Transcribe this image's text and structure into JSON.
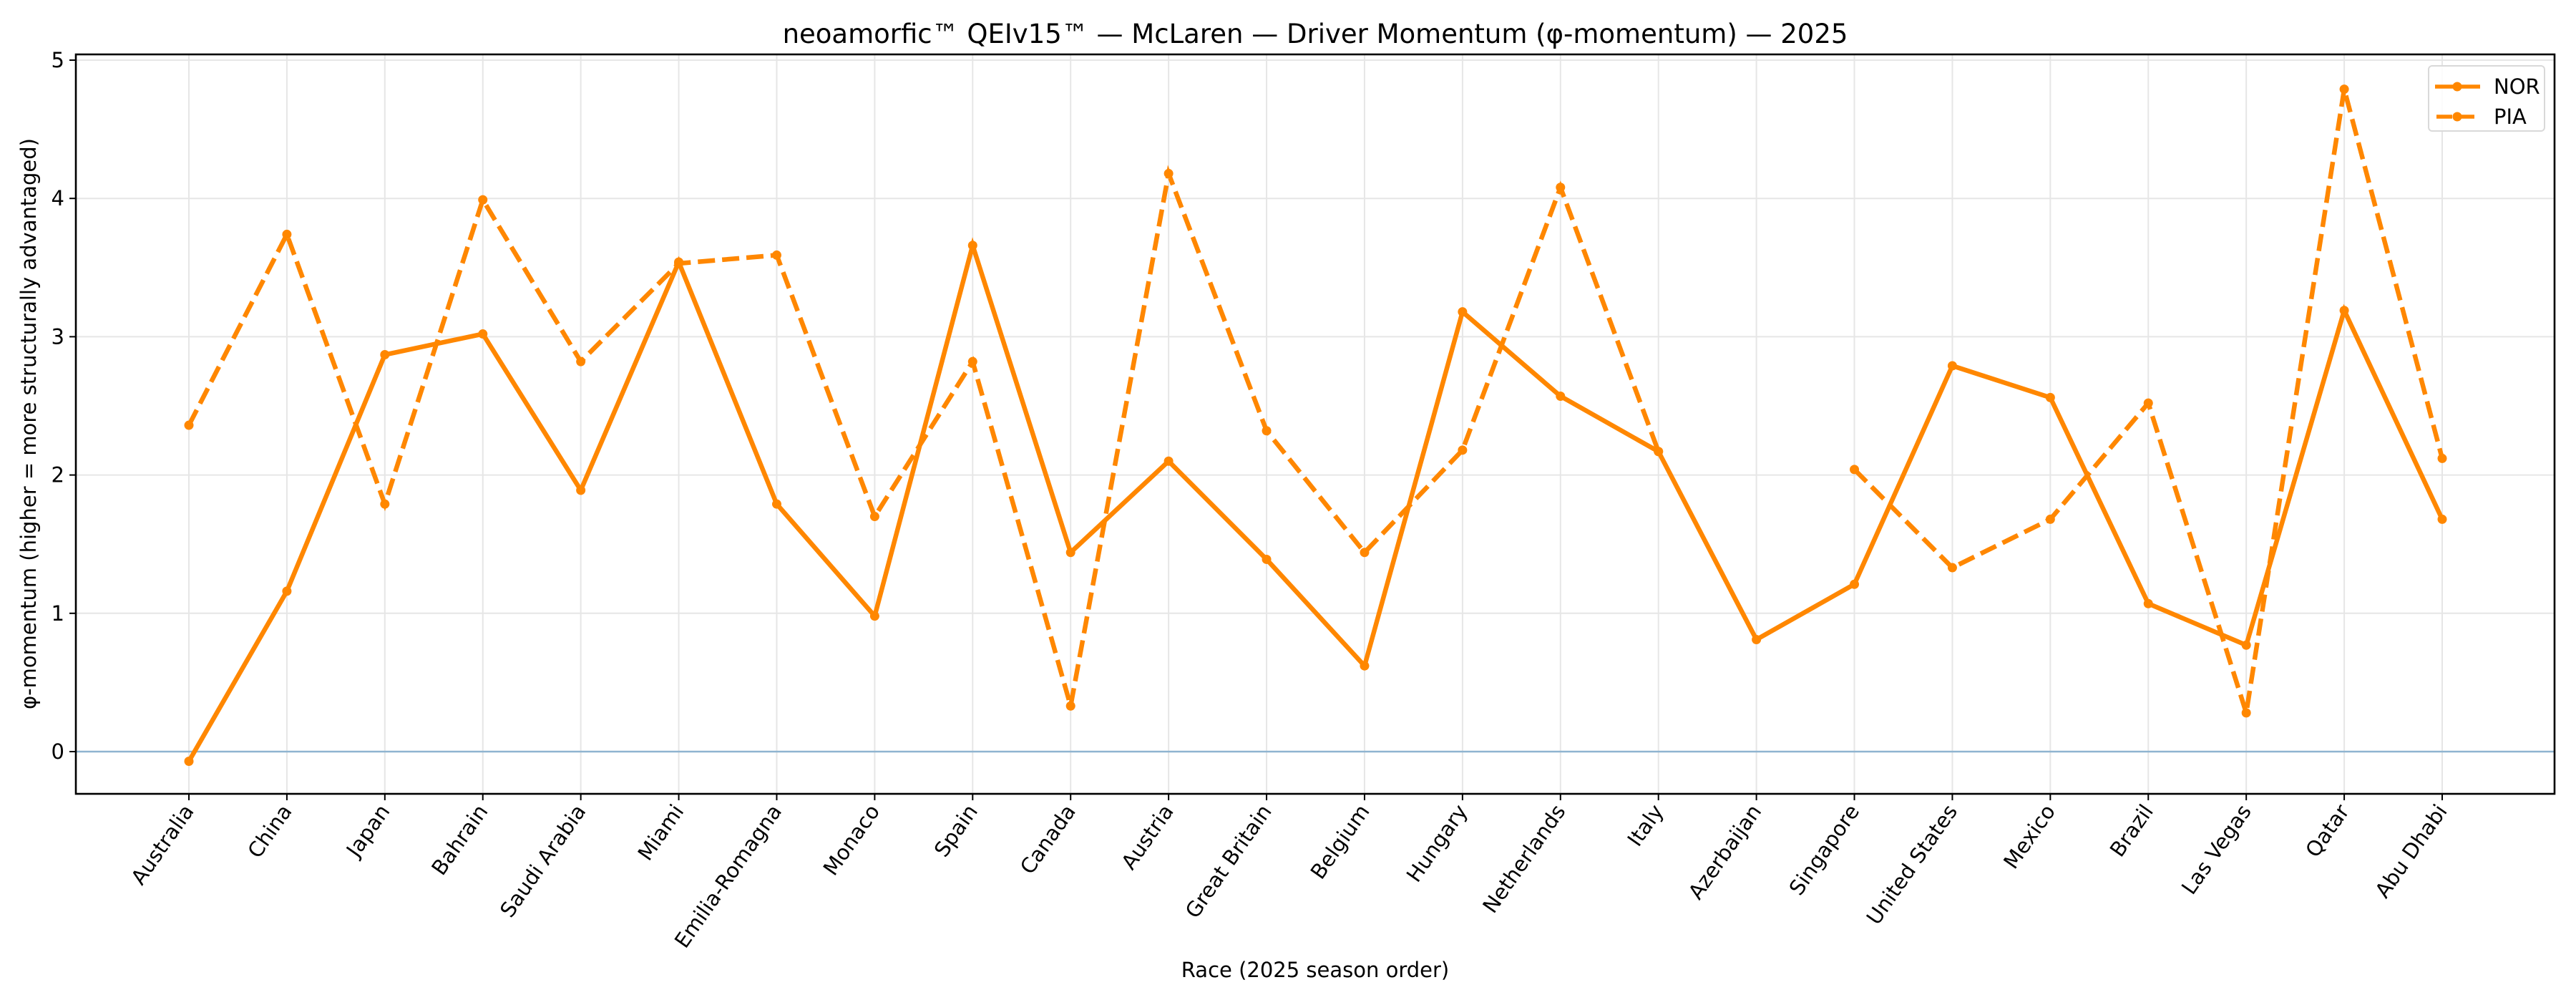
{
  "chart_data": {
    "type": "line",
    "title": "neoamorfic™  QEIv15™ — McLaren — Driver Momentum (φ-momentum) — 2025",
    "xlabel": "Race (2025 season order)",
    "ylabel": "φ-momentum (higher = more structurally advantaged)",
    "ylim": [
      -0.37,
      5.04
    ],
    "yticks": [
      0,
      1,
      2,
      3,
      4,
      5
    ],
    "grid": true,
    "reference_line": {
      "y": 0,
      "color": "#8fb4d0"
    },
    "legend_position": "upper right",
    "categories": [
      "Australia",
      "China",
      "Japan",
      "Bahrain",
      "Saudi Arabia",
      "Miami",
      "Emilia-Romagna",
      "Monaco",
      "Spain",
      "Canada",
      "Austria",
      "Great Britain",
      "Belgium",
      "Hungary",
      "Netherlands",
      "Italy",
      "Azerbaijan",
      "Singapore",
      "United States",
      "Mexico",
      "Brazil",
      "Las Vegas",
      "Qatar",
      "Abu Dhabi"
    ],
    "series": [
      {
        "name": "NOR",
        "style": "solid",
        "color": "#ff8700",
        "values": [
          -0.07,
          1.16,
          2.87,
          3.02,
          1.89,
          3.54,
          1.79,
          0.98,
          3.66,
          1.44,
          2.1,
          1.39,
          0.62,
          3.18,
          2.57,
          2.17,
          0.81,
          1.21,
          2.79,
          2.56,
          1.07,
          0.77,
          3.19,
          1.68
        ]
      },
      {
        "name": "PIA",
        "style": "dashed",
        "color": "#ff8700",
        "values": [
          2.36,
          3.74,
          1.79,
          3.99,
          2.82,
          3.53,
          3.59,
          1.7,
          2.82,
          0.33,
          4.18,
          2.32,
          1.44,
          2.18,
          4.08,
          2.17,
          null,
          2.04,
          1.33,
          1.68,
          2.52,
          0.28,
          4.79,
          2.12
        ]
      }
    ]
  }
}
